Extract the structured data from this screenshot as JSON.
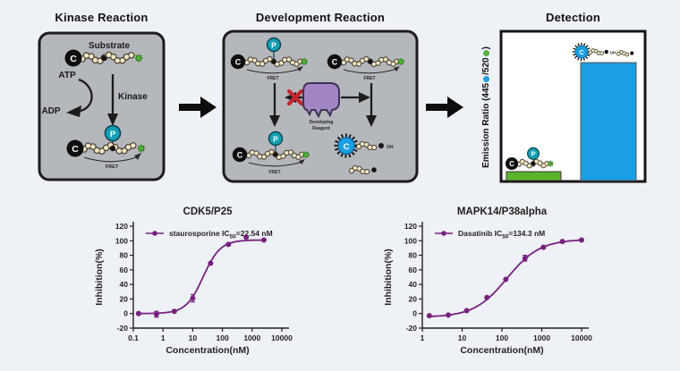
{
  "workflow": {
    "kinase_panel": {
      "title": "Kinase Reaction",
      "substrate_label": "Substrate",
      "atp_label": "ATP",
      "adp_label": "ADP",
      "kinase_label": "Kinase",
      "fret_label": "FRET",
      "donor_letter": "C",
      "phosphate_letter": "P"
    },
    "development_panel": {
      "title": "Development Reaction",
      "fret_label": "FRET",
      "reagent_line1": "Developing",
      "reagent_line2": "Reagent",
      "oh_label": "OH",
      "donor_letter": "C",
      "phosphate_letter": "P"
    },
    "detection_panel": {
      "title": "Detection",
      "y_label_prefix": "Emission Ratio (445",
      "y_label_mid": "/520",
      "y_label_suffix": ")",
      "oh_label": "OH",
      "donor_letter": "C",
      "phosphate_letter": "P",
      "bars": [
        {
          "name": "phosphorylated-intact-FRET",
          "relative_height": 0.07,
          "color": "#5cb32a"
        },
        {
          "name": "non-phosphorylated-cleaved",
          "relative_height": 0.78,
          "color": "#1b9fe4"
        }
      ]
    }
  },
  "colors": {
    "background": "#eef1f6",
    "panel_gray": "#b4b7bb",
    "panel_border": "#1c1c1c",
    "chain_bead": "#f3e5c1",
    "phosphate_teal": "#14a0b4",
    "fluorophore_green": "#54b43e",
    "coumarin_blue": "#1b9fe4",
    "reagent_purple": "#a285c4",
    "blocked_red": "#c1272d",
    "curve_purple": "#76217e",
    "bar_green": "#5cb32a",
    "bar_blue": "#1b9fe4"
  },
  "chart_data": [
    {
      "type": "scatter",
      "title": "CDK5/P25",
      "xlabel": "Concentration(nM)",
      "ylabel": "Inhibition(%)",
      "x_scale": "log",
      "xlim": [
        0.1,
        10000
      ],
      "ylim": [
        -20,
        120
      ],
      "x_ticks": [
        "0.1",
        "1",
        "10",
        "100",
        "1000",
        "10000"
      ],
      "y_ticks": [
        -20,
        0,
        20,
        40,
        60,
        80,
        100,
        120
      ],
      "grid": false,
      "legend_position": "top-left-inside",
      "legend": {
        "pre": "staurosporine IC",
        "sub": "50",
        "post": "=22.54 nM"
      },
      "series_color": "#76217e",
      "points": {
        "x": [
          0.15,
          0.6,
          2.4,
          10,
          40,
          160,
          630,
          2500
        ],
        "y": [
          0,
          -1,
          3,
          21,
          69,
          95,
          105,
          101
        ],
        "yerr": [
          0,
          4,
          0,
          5,
          0,
          0,
          0,
          0
        ]
      },
      "fit": {
        "model": "4PL",
        "bottom": 0,
        "top": 101,
        "ic50": 22.54,
        "hill": 1.5
      }
    },
    {
      "type": "scatter",
      "title": "MAPK14/P38alpha",
      "xlabel": "Concentration(nM)",
      "ylabel": "Inhibition(%)",
      "x_scale": "log",
      "xlim": [
        1,
        10000
      ],
      "ylim": [
        -20,
        120
      ],
      "x_ticks": [
        "1",
        "10",
        "100",
        "1000",
        "10000"
      ],
      "y_ticks": [
        -20,
        0,
        20,
        40,
        60,
        80,
        100,
        120
      ],
      "grid": false,
      "legend_position": "top-left-inside",
      "legend": {
        "pre": "Dasatinib IC",
        "sub": "50",
        "post": "=134.3 nM"
      },
      "series_color": "#76217e",
      "points": {
        "x": [
          1.5,
          4.5,
          13,
          42,
          125,
          380,
          1100,
          3300,
          10000
        ],
        "y": [
          -3,
          -2,
          4,
          22,
          47,
          76,
          91,
          99,
          101
        ],
        "yerr": [
          0,
          0,
          0,
          0,
          0,
          4,
          0,
          0,
          0
        ]
      },
      "fit": {
        "model": "4PL",
        "bottom": -5,
        "top": 102,
        "ic50": 134.3,
        "hill": 1.05
      }
    }
  ]
}
